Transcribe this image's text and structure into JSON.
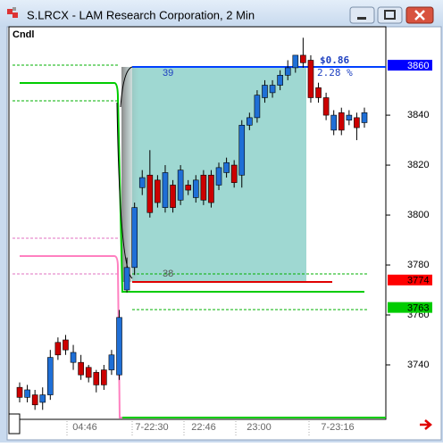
{
  "window": {
    "title": "S.LRCX - LAM Research Corporation, 2 Min"
  },
  "chart_data": {
    "type": "candlestick",
    "label": "Cndl",
    "open": [
      3731,
      3727,
      3728,
      3725,
      3728,
      3749,
      3750,
      3741,
      3741,
      3739,
      3737,
      3738,
      3738,
      3736,
      3770,
      3779,
      3811,
      3816,
      3814,
      3803,
      3812,
      3806,
      3812,
      3807,
      3816,
      3816,
      3812,
      3817,
      3820,
      3816,
      3836,
      3839,
      3847,
      3849,
      3852,
      3856,
      3859,
      3864,
      3862,
      3851,
      3847,
      3834,
      3841,
      3838,
      3839,
      3837
    ],
    "high": [
      3733,
      3732,
      3730,
      3731,
      3746,
      3751,
      3752,
      3748,
      3744,
      3740,
      3738,
      3740,
      3746,
      3762,
      3783,
      3805,
      3818,
      3826,
      3816,
      3820,
      3814,
      3820,
      3814,
      3816,
      3818,
      3818,
      3821,
      3823,
      3822,
      3838,
      3841,
      3850,
      3854,
      3854,
      3858,
      3862,
      3864,
      3871,
      3864,
      3853,
      3849,
      3842,
      3843,
      3842,
      3841,
      3843
    ],
    "low": [
      3725,
      3725,
      3722,
      3722,
      3726,
      3742,
      3744,
      3738,
      3734,
      3733,
      3729,
      3730,
      3736,
      3734,
      3769,
      3776,
      3808,
      3799,
      3803,
      3801,
      3801,
      3804,
      3808,
      3805,
      3804,
      3803,
      3810,
      3815,
      3811,
      3811,
      3834,
      3837,
      3845,
      3847,
      3850,
      3854,
      3857,
      3859,
      3845,
      3845,
      3838,
      3832,
      3832,
      3836,
      3830,
      3835
    ],
    "close": [
      3727,
      3730,
      3724,
      3728,
      3743,
      3744,
      3746,
      3745,
      3736,
      3735,
      3732,
      3732,
      3744,
      3759,
      3779,
      3803,
      3815,
      3801,
      3805,
      3817,
      3803,
      3818,
      3810,
      3814,
      3806,
      3805,
      3819,
      3821,
      3813,
      3836,
      3839,
      3848,
      3852,
      3852,
      3856,
      3859,
      3864,
      3861,
      3847,
      3847,
      3840,
      3840,
      3834,
      3840,
      3835,
      3841
    ],
    "up_color": "#1f6fd6",
    "down_color": "#cc0000",
    "ylim": [
      3718.2,
      3875.4
    ],
    "yticks": [
      3740,
      3760,
      3780,
      3800,
      3820,
      3840
    ],
    "price_markers": [
      {
        "value": 3860,
        "color": "#0000ff"
      },
      {
        "value": 3774,
        "color": "#ff0000"
      },
      {
        "value": 3763,
        "color": "#00cc00"
      }
    ],
    "xtick_labels": [
      "04:46",
      "7-22:30",
      "22:46",
      "23:00",
      "7-23:16"
    ],
    "annotations": {
      "upper_count": "39",
      "lower_count": "38",
      "change": "$0.86",
      "change_pct": "2.28 %"
    }
  }
}
